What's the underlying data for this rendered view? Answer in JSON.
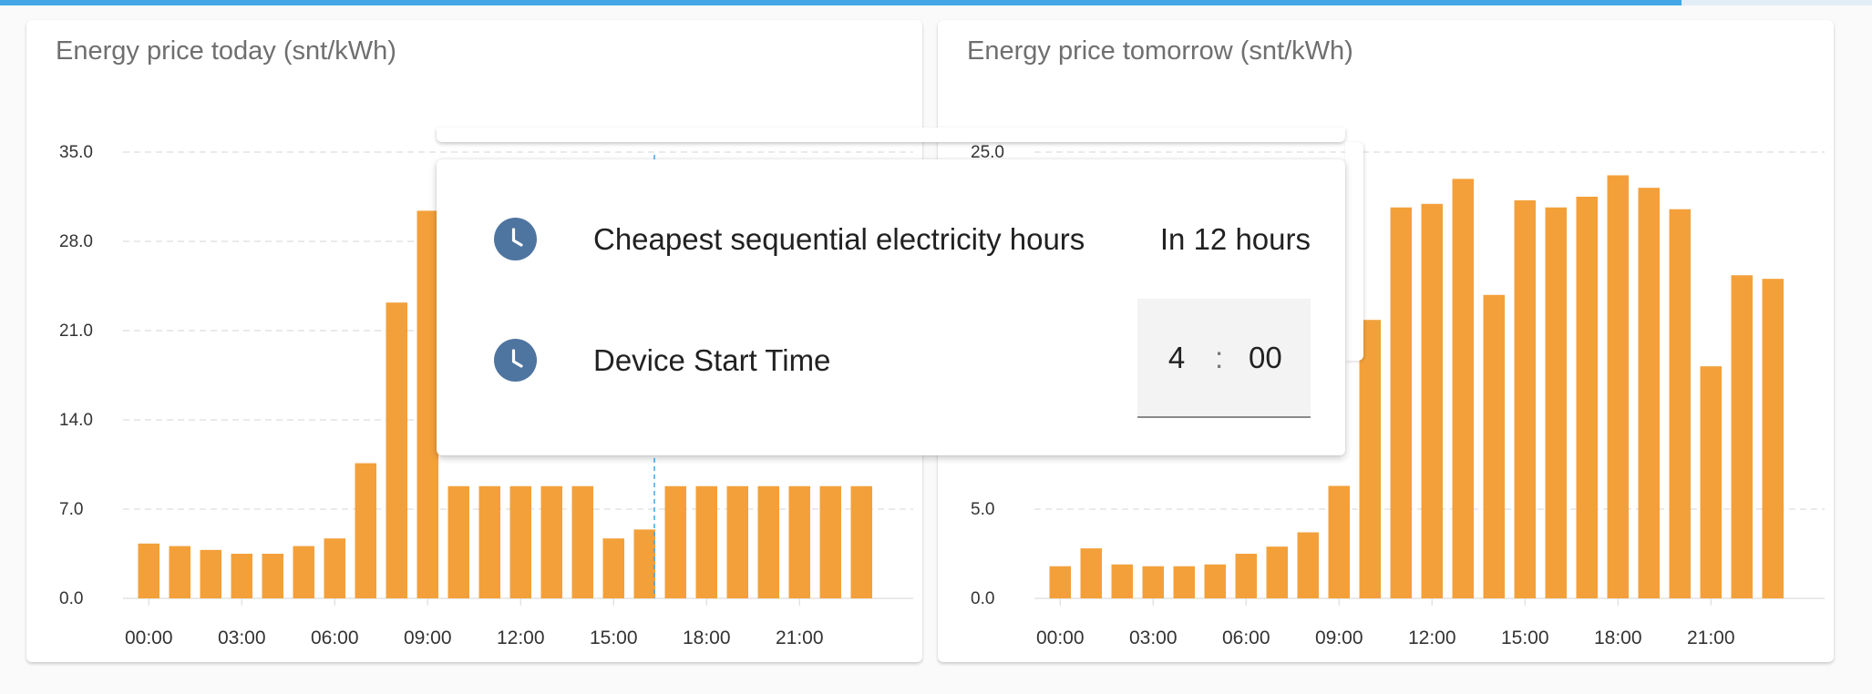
{
  "colors": {
    "bar": "#f3a03a",
    "grid": "#dddddd",
    "accent": "#44a6e6",
    "icon_bg": "#4e74a0"
  },
  "cards": [
    {
      "title": "Energy price today (snt/kWh)"
    },
    {
      "title": "Energy price tomorrow (snt/kWh)"
    }
  ],
  "chart_data": [
    {
      "type": "bar",
      "title": "Energy price today (snt/kWh)",
      "x_tick_labels": [
        "00:00",
        "03:00",
        "06:00",
        "09:00",
        "12:00",
        "15:00",
        "18:00",
        "21:00"
      ],
      "y_tick_labels": [
        "0.0",
        "7.0",
        "14.0",
        "21.0",
        "28.0",
        "35.0"
      ],
      "ylim": [
        0,
        35
      ],
      "grid": true,
      "categories": [
        "0",
        "1",
        "2",
        "3",
        "4",
        "5",
        "6",
        "7",
        "8",
        "9",
        "10",
        "11",
        "12",
        "13",
        "14",
        "15",
        "16",
        "17",
        "18",
        "19",
        "20",
        "21",
        "22",
        "23"
      ],
      "values": [
        4.3,
        4.1,
        3.8,
        3.5,
        3.5,
        4.1,
        4.7,
        10.6,
        23.2,
        30.4,
        8.8,
        8.8,
        8.8,
        8.8,
        8.8,
        4.7,
        5.4,
        8.8,
        8.8,
        8.8,
        8.8,
        8.8,
        8.8,
        8.8
      ]
    },
    {
      "type": "bar",
      "title": "Energy price tomorrow (snt/kWh)",
      "x_tick_labels": [
        "00:00",
        "03:00",
        "06:00",
        "09:00",
        "12:00",
        "15:00",
        "18:00",
        "21:00"
      ],
      "y_tick_labels": [
        "0.0",
        "5.0",
        "25.0"
      ],
      "ylim": [
        0,
        25
      ],
      "grid": true,
      "categories": [
        "0",
        "1",
        "2",
        "3",
        "4",
        "5",
        "6",
        "7",
        "8",
        "9",
        "10",
        "11",
        "12",
        "13",
        "14",
        "15",
        "16",
        "17",
        "18",
        "19",
        "20",
        "21",
        "22",
        "23"
      ],
      "values": [
        1.8,
        2.8,
        1.9,
        1.8,
        1.8,
        1.9,
        2.5,
        2.9,
        3.7,
        6.3,
        15.6,
        21.9,
        22.1,
        23.5,
        17.0,
        22.3,
        21.9,
        22.5,
        23.7,
        23.0,
        21.8,
        13.0,
        18.1,
        17.9
      ]
    }
  ],
  "popup": {
    "rows": [
      {
        "icon": "clock-icon",
        "label": "Cheapest sequential electricity hours",
        "value": "In 12 hours"
      },
      {
        "icon": "clock-icon",
        "label": "Device Start Time",
        "hour": "4",
        "separator": ":",
        "minute": "00"
      }
    ]
  }
}
